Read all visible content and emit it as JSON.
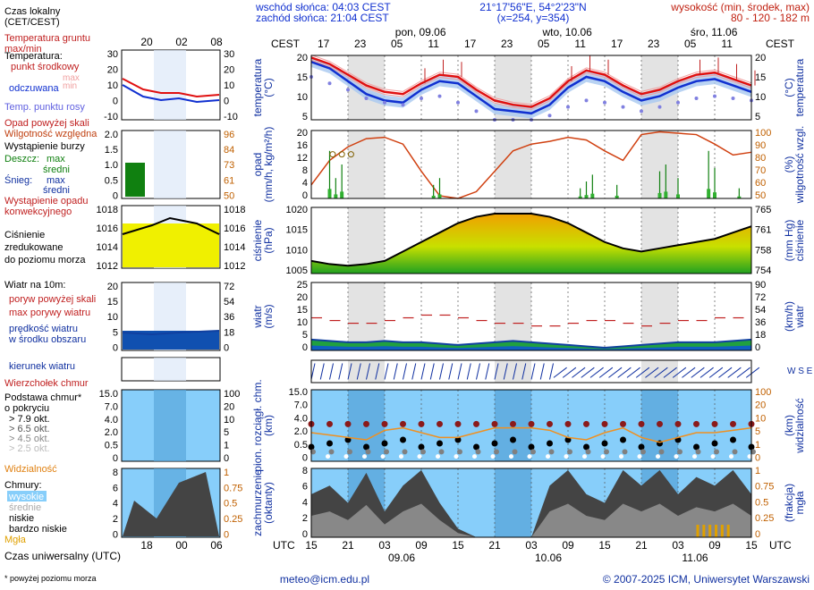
{
  "header": {
    "sunrise": "wschód słońca: 04:03 CEST",
    "sunset": "zachód słońca: 21:04 CEST",
    "coords": "21°17'56\"E, 54°2'23\"N",
    "grid": "(x=254, y=354)",
    "altitude_label": "wysokość (min, środek, max)",
    "altitude_values": "80 - 120 - 182 m"
  },
  "time_axis": {
    "tz_top": "CEST",
    "tz_bottom": "UTC",
    "dates_top": [
      "pon, 09.06",
      "wto, 10.06",
      "śro, 11.06"
    ],
    "hours_top": [
      "17",
      "23",
      "05",
      "11",
      "17",
      "23",
      "05",
      "11",
      "17",
      "23",
      "05",
      "11",
      "17"
    ],
    "hours_bottom": [
      "15",
      "21",
      "03",
      "09",
      "15",
      "21",
      "03",
      "09",
      "15",
      "21",
      "03",
      "09",
      "15"
    ],
    "dates_bottom": [
      "09.06",
      "10.06",
      "11.06"
    ]
  },
  "legend": {
    "local_time": "Czas lokalny\n(CET/CEST)",
    "local_ticks": [
      "20",
      "02",
      "08"
    ],
    "utc_time": "Czas uniwersalny (UTC)",
    "utc_ticks": [
      "18",
      "00",
      "06"
    ],
    "temp_ground": "Temperatura gruntu\nmax/min",
    "temp_title": "Temperatura:",
    "temp_mid": "punkt środkowy",
    "temp_max_min": "max\nmin",
    "temp_perceived": "odczuwana",
    "temp_dew": "Temp. punktu rosy",
    "precip_above": "Opad powyżej skali",
    "humidity": "Wilgotność względna",
    "storm": "Wystąpienie burzy",
    "rain": "Deszcz:",
    "rain_max": "max",
    "rain_mid": "średni",
    "snow": "Śnieg:",
    "snow_max": "max",
    "snow_mid": "średni",
    "conv_precip": "Wystąpienie opadu\nkonwekcyjnego",
    "pressure": "Ciśnienie\nzredukowane\ndo poziomu morza",
    "wind_10m": "Wiatr na 10m:",
    "gust_above": "poryw powyżej skali",
    "gust_max": "max porywy wiatru",
    "wind_mean": "prędkość wiatru\nw środku obszaru",
    "wind_dir": "kierunek wiatru",
    "cloud_top": "Wierzchołek chmur",
    "cloud_base": "Podstawa chmur*\no pokryciu",
    "okt": [
      "> 7.9 okt.",
      "> 6.5 okt.",
      "> 4.5 okt.",
      "> 2.5 okt.",
      "> 0.1 okt."
    ],
    "visibility": "Widzialność",
    "clouds": "Chmury:",
    "cloud_types": [
      "wysokie",
      "średnie",
      "niskie",
      "bardzo niskie"
    ],
    "fog": "Mgła",
    "footnote": "* powyżej poziomu morza"
  },
  "panels": {
    "temp": {
      "ylabel": "temperatura\n(°C)",
      "ylabel_r": "(°C)\ntemperatura",
      "ticks": [
        "20",
        "15",
        "10",
        "5"
      ],
      "ticks_r": [
        "20",
        "15",
        "10",
        "5"
      ],
      "legend_ticks": [
        "30",
        "20",
        "10",
        "0",
        "-10"
      ]
    },
    "precip": {
      "ylabel": "opad\n(mm/h, kg/m²/h)",
      "ylabel_r": "(%)\nwilgotność wzgl.",
      "ticks": [
        "20",
        "16",
        "12",
        "8",
        "4",
        "0"
      ],
      "ticks_r": [
        "100",
        "90",
        "80",
        "70",
        "60",
        "50"
      ],
      "legend_ticks": [
        "2.0",
        "1.5",
        "1.0",
        "0.5",
        "0"
      ],
      "legend_ticks_r": [
        "96",
        "84",
        "73",
        "61",
        "50"
      ]
    },
    "pressure": {
      "ylabel": "ciśnienie\n(hPa)",
      "ylabel_r": "(mm Hg)\nciśnienie",
      "ticks": [
        "1020",
        "1015",
        "1010",
        "1005"
      ],
      "ticks_r": [
        "765",
        "761",
        "758",
        "754"
      ],
      "legend_ticks": [
        "1018",
        "1016",
        "1014",
        "1012"
      ]
    },
    "wind": {
      "ylabel": "wiatr\n(m/s)",
      "ylabel_r": "(km/h)\nwiatr",
      "ticks": [
        "25",
        "20",
        "15",
        "10",
        "5",
        "0"
      ],
      "ticks_r": [
        "90",
        "72",
        "54",
        "36",
        "18",
        "0"
      ],
      "legend_ticks": [
        "20",
        "15",
        "10",
        "5",
        "0"
      ],
      "legend_ticks_r": [
        "72",
        "54",
        "36",
        "18",
        "0"
      ]
    },
    "cloudbase": {
      "ylabel": "pion. rozciągł. chm.\n(km)",
      "ylabel_r": "(km)\nwidzialność",
      "ticks": [
        "15.0",
        "7.0",
        "4.0",
        "2.0",
        "0.5",
        "0"
      ],
      "ticks_r": [
        "100",
        "20",
        "10",
        "5",
        "1",
        "0"
      ],
      "legend_ticks": [
        "15.0",
        "7.0",
        "4.0",
        "2.0",
        "0.5",
        "0"
      ],
      "legend_ticks_r": [
        "100",
        "20",
        "10",
        "5",
        "1",
        "0"
      ]
    },
    "cloud": {
      "ylabel": "zachmurzenie\n(oktanty)",
      "ylabel_r": "(frakcja)\nmgła",
      "ticks": [
        "8",
        "6",
        "4",
        "2",
        "0"
      ],
      "ticks_r": [
        "1",
        "0.75",
        "0.5",
        "0.25",
        "0"
      ]
    }
  },
  "footer": {
    "email": "meteo@icm.edu.pl",
    "copyright": "© 2007-2025 ICM, Uniwersytet Warszawski"
  },
  "colors": {
    "temp": "#e01010",
    "perceived": "#1030d0",
    "dew": "#8080e0",
    "humidity": "#d04010",
    "pressure_low": "#30b030",
    "pressure_high": "#f0a000",
    "wind": "#1040a0",
    "gust": "#c02020",
    "sky": "#87cefa",
    "night": "#dcdcdc"
  },
  "chart_data": {
    "type": "line",
    "x_utc_hours_from": "09.06 15 UTC",
    "x": [
      0,
      3,
      6,
      9,
      12,
      15,
      18,
      21,
      24,
      27,
      30,
      33,
      36,
      39,
      42,
      45,
      48,
      51,
      54,
      57,
      60,
      63,
      66,
      69,
      72
    ],
    "series": [
      {
        "name": "punkt środkowy",
        "values": [
          19.5,
          18,
          15.5,
          13,
          11.5,
          11,
          13.5,
          15.5,
          15,
          12,
          9.5,
          8.5,
          8,
          10,
          14,
          16.5,
          15.5,
          13,
          11,
          12,
          14,
          15.5,
          16,
          14.5,
          13
        ]
      },
      {
        "name": "odczuwana",
        "values": [
          18.5,
          17,
          14,
          11,
          9.5,
          9,
          12,
          14,
          13.5,
          10.5,
          7.5,
          7,
          6.5,
          8.5,
          12.5,
          15,
          14,
          11.5,
          9.5,
          10.5,
          12.5,
          14,
          14.5,
          13,
          11.5
        ]
      },
      {
        "name": "Temp. punktu rosy",
        "values": [
          15,
          13.5,
          12,
          10,
          9,
          8.5,
          10,
          10.5,
          9,
          7,
          5,
          5,
          5,
          6,
          8,
          9.5,
          9,
          8,
          7,
          8,
          9,
          10,
          10.5,
          10,
          9.5
        ]
      },
      {
        "name": "Ciśnienie",
        "values": [
          1006,
          1005,
          1004.5,
          1005,
          1006,
          1009,
          1012,
          1015,
          1018,
          1020,
          1021,
          1021,
          1021,
          1020,
          1018,
          1015,
          1012,
          1010,
          1009,
          1010,
          1011,
          1012,
          1013,
          1015,
          1017
        ]
      },
      {
        "name": "Wilgotność względna",
        "values": [
          60,
          78,
          88,
          94,
          95,
          90,
          70,
          52,
          50,
          55,
          70,
          85,
          90,
          92,
          95,
          93,
          85,
          78,
          97,
          99,
          98,
          97,
          90,
          82,
          84
        ]
      },
      {
        "name": "prędkość wiatru",
        "values": [
          4,
          3.5,
          3,
          3,
          3.5,
          3,
          3,
          2.5,
          2,
          2.5,
          3,
          3.5,
          3,
          2.5,
          2,
          1.5,
          1,
          1.5,
          2,
          2.5,
          3,
          3,
          3,
          3.5,
          4
        ]
      },
      {
        "name": "max porywy wiatru",
        "values": [
          12,
          11,
          10,
          10,
          11,
          12,
          13,
          13,
          12,
          11,
          10,
          10,
          9,
          9,
          10,
          11,
          11,
          10,
          9,
          10,
          11,
          11,
          12,
          12,
          13
        ]
      }
    ],
    "ylim_temp": [
      5,
      20
    ],
    "ylim_pressure": [
      1002,
      1023
    ],
    "ylim_wind": [
      0,
      25
    ]
  }
}
